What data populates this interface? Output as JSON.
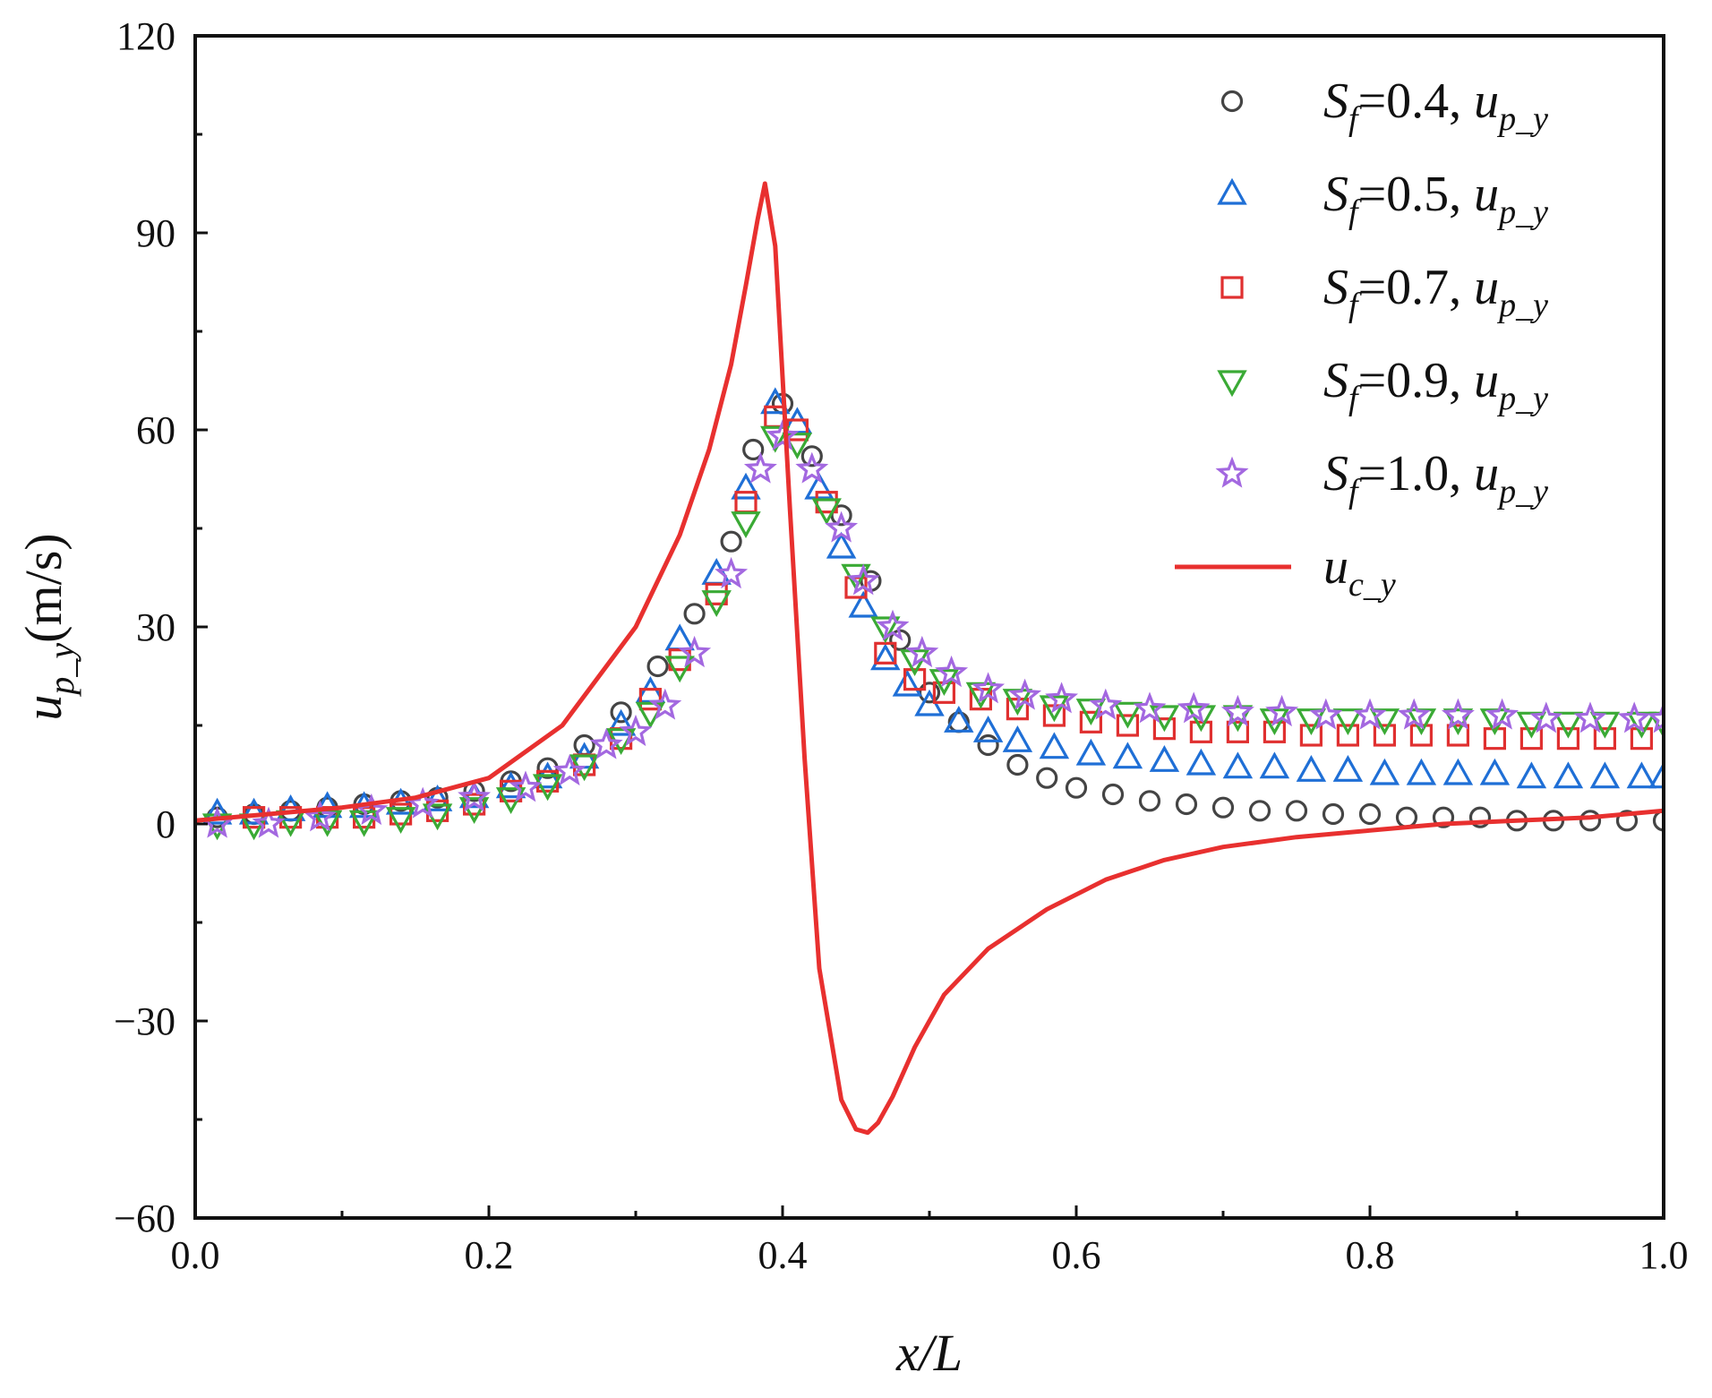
{
  "chart_data": {
    "type": "scatter",
    "title": "",
    "xlabel": "x/L",
    "ylabel": "u_p_y(m/s)",
    "xlim": [
      0.0,
      1.0
    ],
    "ylim": [
      -60,
      120
    ],
    "x_ticks": [
      0.0,
      0.2,
      0.4,
      0.6,
      0.8,
      1.0
    ],
    "x_tick_labels": [
      "0.0",
      "0.2",
      "0.4",
      "0.6",
      "0.8",
      "1.0"
    ],
    "y_ticks": [
      -60,
      -30,
      0,
      30,
      60,
      90,
      120
    ],
    "y_tick_labels": [
      "−60",
      "−30",
      "0",
      "30",
      "60",
      "90",
      "120"
    ],
    "legend_position": "top-right",
    "series": [
      {
        "name": "Sf=0.4, u_p_y",
        "sf": "0.4",
        "marker": "circle",
        "color": "#444444",
        "x": [
          0.015,
          0.04,
          0.065,
          0.09,
          0.115,
          0.14,
          0.165,
          0.19,
          0.215,
          0.24,
          0.265,
          0.29,
          0.315,
          0.34,
          0.365,
          0.38,
          0.4,
          0.42,
          0.44,
          0.46,
          0.48,
          0.5,
          0.52,
          0.54,
          0.56,
          0.58,
          0.6,
          0.625,
          0.65,
          0.675,
          0.7,
          0.725,
          0.75,
          0.775,
          0.8,
          0.825,
          0.85,
          0.875,
          0.9,
          0.925,
          0.95,
          0.975,
          1.0
        ],
        "y": [
          1,
          1.5,
          2,
          2.5,
          3,
          3.5,
          4,
          5,
          6.5,
          8.5,
          12,
          17,
          24,
          32,
          43,
          57,
          64,
          56,
          47,
          37,
          28,
          20,
          15.5,
          12,
          9,
          7,
          5.5,
          4.5,
          3.5,
          3,
          2.5,
          2,
          2,
          1.5,
          1.5,
          1,
          1,
          1,
          0.5,
          0.5,
          0.5,
          0.5,
          0.5
        ]
      },
      {
        "name": "Sf=0.5, u_p_y",
        "sf": "0.5",
        "marker": "triangle-up",
        "color": "#1f6fd6",
        "x": [
          0.015,
          0.04,
          0.065,
          0.09,
          0.115,
          0.14,
          0.165,
          0.19,
          0.215,
          0.24,
          0.265,
          0.29,
          0.31,
          0.33,
          0.355,
          0.375,
          0.395,
          0.41,
          0.425,
          0.44,
          0.455,
          0.47,
          0.485,
          0.5,
          0.52,
          0.54,
          0.56,
          0.585,
          0.61,
          0.635,
          0.66,
          0.685,
          0.71,
          0.735,
          0.76,
          0.785,
          0.81,
          0.835,
          0.86,
          0.885,
          0.91,
          0.935,
          0.96,
          0.985,
          1.0
        ],
        "y": [
          1.5,
          1.5,
          2,
          2.5,
          2.5,
          3,
          3.5,
          4,
          5.5,
          7,
          10,
          15,
          20,
          28,
          38,
          51,
          64,
          61,
          51,
          42,
          33,
          25,
          21,
          18,
          15.5,
          14,
          12.5,
          11.5,
          10.5,
          10,
          9.5,
          9,
          8.5,
          8.5,
          8,
          8,
          7.5,
          7.5,
          7.5,
          7.5,
          7,
          7,
          7,
          7,
          7
        ]
      },
      {
        "name": "Sf=0.7, u_p_y",
        "sf": "0.7",
        "marker": "square",
        "color": "#e03030",
        "x": [
          0.04,
          0.065,
          0.09,
          0.115,
          0.14,
          0.165,
          0.19,
          0.215,
          0.24,
          0.265,
          0.29,
          0.31,
          0.33,
          0.355,
          0.375,
          0.395,
          0.41,
          0.43,
          0.45,
          0.47,
          0.49,
          0.51,
          0.535,
          0.56,
          0.585,
          0.61,
          0.635,
          0.66,
          0.685,
          0.71,
          0.735,
          0.76,
          0.785,
          0.81,
          0.835,
          0.86,
          0.885,
          0.91,
          0.935,
          0.96,
          0.985
        ],
        "y": [
          1,
          1,
          1,
          1,
          1.5,
          2,
          3,
          5,
          6.5,
          9,
          13,
          19,
          25,
          35,
          49,
          62,
          60,
          49,
          36,
          26,
          22,
          20,
          19,
          17.5,
          16.5,
          15.5,
          15,
          14.5,
          14,
          14,
          14,
          13.5,
          13.5,
          13.5,
          13.5,
          13.5,
          13,
          13,
          13,
          13,
          13
        ]
      },
      {
        "name": "Sf=0.9, u_p_y",
        "sf": "0.9",
        "marker": "triangle-down",
        "color": "#3aaa35",
        "x": [
          0.015,
          0.04,
          0.065,
          0.09,
          0.115,
          0.14,
          0.165,
          0.19,
          0.215,
          0.24,
          0.265,
          0.29,
          0.31,
          0.33,
          0.355,
          0.375,
          0.395,
          0.41,
          0.43,
          0.45,
          0.47,
          0.49,
          0.51,
          0.535,
          0.56,
          0.585,
          0.61,
          0.635,
          0.66,
          0.685,
          0.71,
          0.735,
          0.76,
          0.785,
          0.81,
          0.835,
          0.86,
          0.885,
          0.91,
          0.935,
          0.96,
          0.985,
          1.0
        ],
        "y": [
          0,
          0,
          0.5,
          0.5,
          0.5,
          1,
          1.5,
          2.5,
          4,
          6,
          9,
          13,
          17,
          24,
          34,
          46,
          59,
          58,
          48,
          38,
          30,
          25,
          22,
          20,
          19,
          18,
          17.5,
          17,
          16.5,
          16.5,
          16.5,
          16,
          16,
          16,
          16,
          16,
          16,
          16,
          15.5,
          15.5,
          15.5,
          15.5,
          15.5
        ]
      },
      {
        "name": "Sf=1.0, u_p_y",
        "sf": "1.0",
        "marker": "star",
        "color": "#a368e0",
        "x": [
          0.015,
          0.05,
          0.085,
          0.12,
          0.155,
          0.19,
          0.225,
          0.255,
          0.28,
          0.3,
          0.32,
          0.34,
          0.365,
          0.385,
          0.4,
          0.42,
          0.44,
          0.455,
          0.475,
          0.495,
          0.515,
          0.54,
          0.565,
          0.59,
          0.62,
          0.65,
          0.68,
          0.71,
          0.74,
          0.77,
          0.8,
          0.83,
          0.86,
          0.89,
          0.92,
          0.95,
          0.98,
          1.0
        ],
        "y": [
          0,
          0,
          1,
          2,
          3,
          4,
          5.5,
          8,
          12,
          14,
          18,
          26,
          38,
          54,
          59,
          54,
          45,
          37,
          30,
          26,
          23,
          20.5,
          19.5,
          19,
          18,
          17.5,
          17.5,
          17,
          17,
          16.5,
          16.5,
          16.5,
          16.5,
          16.5,
          16,
          16,
          16,
          16
        ]
      },
      {
        "name": "u_c_y",
        "marker": "line",
        "color": "#e8302f",
        "x": [
          0.0,
          0.05,
          0.1,
          0.15,
          0.2,
          0.25,
          0.3,
          0.33,
          0.35,
          0.365,
          0.375,
          0.383,
          0.388,
          0.395,
          0.405,
          0.415,
          0.425,
          0.44,
          0.45,
          0.458,
          0.465,
          0.475,
          0.49,
          0.51,
          0.54,
          0.58,
          0.62,
          0.66,
          0.7,
          0.75,
          0.8,
          0.85,
          0.9,
          0.95,
          1.0
        ],
        "y": [
          0.5,
          1.5,
          2.5,
          4,
          7,
          15,
          30,
          44,
          57,
          70,
          82,
          92,
          97.5,
          88,
          48,
          10,
          -22,
          -42,
          -46.5,
          -47,
          -45.5,
          -41.5,
          -34,
          -26,
          -19,
          -13,
          -8.5,
          -5.5,
          -3.5,
          -2,
          -1,
          0,
          0.5,
          1,
          2
        ]
      }
    ]
  }
}
